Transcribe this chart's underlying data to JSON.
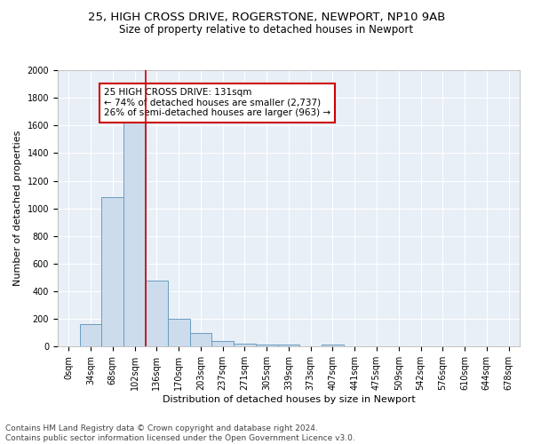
{
  "title1": "25, HIGH CROSS DRIVE, ROGERSTONE, NEWPORT, NP10 9AB",
  "title2": "Size of property relative to detached houses in Newport",
  "xlabel": "Distribution of detached houses by size in Newport",
  "ylabel": "Number of detached properties",
  "footnote": "Contains HM Land Registry data © Crown copyright and database right 2024.\nContains public sector information licensed under the Open Government Licence v3.0.",
  "bar_labels": [
    "0sqm",
    "34sqm",
    "68sqm",
    "102sqm",
    "136sqm",
    "170sqm",
    "203sqm",
    "237sqm",
    "271sqm",
    "305sqm",
    "339sqm",
    "373sqm",
    "407sqm",
    "441sqm",
    "475sqm",
    "509sqm",
    "542sqm",
    "576sqm",
    "610sqm",
    "644sqm",
    "678sqm"
  ],
  "bar_values": [
    0,
    163,
    1080,
    1620,
    480,
    200,
    100,
    38,
    22,
    12,
    18,
    0,
    18,
    0,
    0,
    0,
    0,
    0,
    0,
    0,
    0
  ],
  "bar_color": "#ccdcec",
  "bar_edge_color": "#6a9cbf",
  "red_line_x": 3.5,
  "annotation_text": "25 HIGH CROSS DRIVE: 131sqm\n← 74% of detached houses are smaller (2,737)\n26% of semi-detached houses are larger (963) →",
  "annotation_box_color": "#ffffff",
  "annotation_box_edge": "#cc0000",
  "ylim": [
    0,
    2000
  ],
  "yticks": [
    0,
    200,
    400,
    600,
    800,
    1000,
    1200,
    1400,
    1600,
    1800,
    2000
  ],
  "background_color": "#e8eff7",
  "grid_color": "#ffffff",
  "title1_fontsize": 9.5,
  "title2_fontsize": 8.5,
  "xlabel_fontsize": 8,
  "ylabel_fontsize": 8,
  "tick_fontsize": 7,
  "annotation_fontsize": 7.5,
  "footnote_fontsize": 6.5
}
